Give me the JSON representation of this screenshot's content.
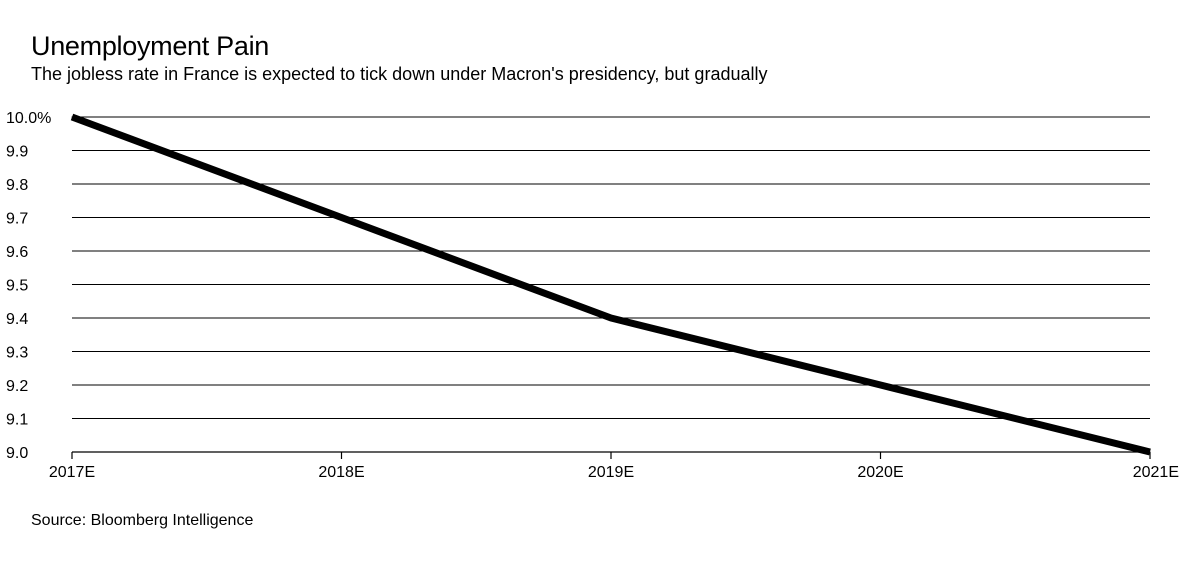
{
  "chart_data": {
    "type": "line",
    "title": "Unemployment Pain",
    "subtitle": "The jobless rate in France is expected to tick down under Macron's presidency, but gradually",
    "source": "Source: Bloomberg Intelligence",
    "categories": [
      "2017E",
      "2018E",
      "2019E",
      "2020E",
      "2021E"
    ],
    "series": [
      {
        "values": [
          10.0,
          9.7,
          9.4,
          9.2,
          9.0
        ]
      }
    ],
    "ylim": [
      9.0,
      10.0
    ],
    "yticks": [
      9.0,
      9.1,
      9.2,
      9.3,
      9.4,
      9.5,
      9.6,
      9.7,
      9.8,
      9.9,
      10.0
    ],
    "ytick_labels": [
      "9.0",
      "9.1",
      "9.2",
      "9.3",
      "9.4",
      "9.5",
      "9.6",
      "9.7",
      "9.8",
      "9.9",
      "10.0%"
    ],
    "xlabel": "",
    "ylabel": "",
    "grid": true,
    "line_color": "#000000",
    "grid_color": "#000000"
  }
}
